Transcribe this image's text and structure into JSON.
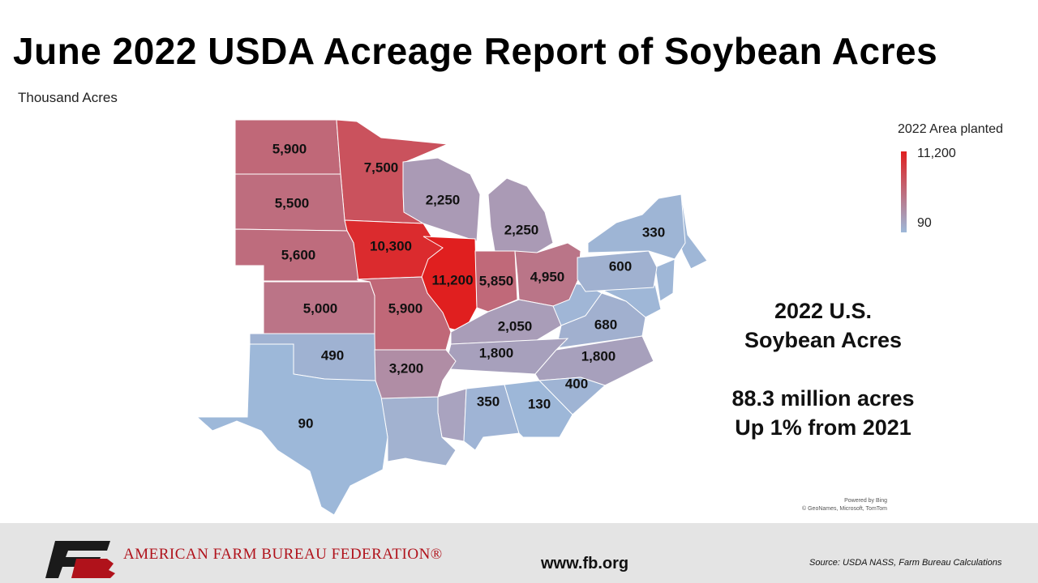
{
  "header": {
    "title": "June 2022 USDA Acreage Report of Soybean Acres",
    "subtitle": "Thousand Acres"
  },
  "legend": {
    "title": "2022 Area planted",
    "max": {
      "value": 11200,
      "label": "11,200",
      "color": "#e01f1f"
    },
    "min": {
      "value": 90,
      "label": "90",
      "color": "#9db8d9"
    }
  },
  "states": [
    {
      "label": "5,900",
      "value": 5900
    },
    {
      "label": "7,500",
      "value": 7500
    },
    {
      "label": "5,500",
      "value": 5500
    },
    {
      "label": "2,250",
      "value": 2250
    },
    {
      "label": "2,250",
      "value": 2250
    },
    {
      "label": "10,300",
      "value": 10300
    },
    {
      "label": "5,600",
      "value": 5600
    },
    {
      "label": "11,200",
      "value": 11200
    },
    {
      "label": "5,850",
      "value": 5850
    },
    {
      "label": "4,950",
      "value": 4950
    },
    {
      "label": "330",
      "value": 330
    },
    {
      "label": "600",
      "value": 600
    },
    {
      "label": "5,000",
      "value": 5000
    },
    {
      "label": "5,900",
      "value": 5900
    },
    {
      "label": "2,050",
      "value": 2050
    },
    {
      "label": "680",
      "value": 680
    },
    {
      "label": "490",
      "value": 490
    },
    {
      "label": "1,800",
      "value": 1800
    },
    {
      "label": "1,800",
      "value": 1800
    },
    {
      "label": "3,200",
      "value": 3200
    },
    {
      "label": "400",
      "value": 400
    },
    {
      "label": "350",
      "value": 350
    },
    {
      "label": "130",
      "value": 130
    },
    {
      "label": "90",
      "value": 90
    }
  ],
  "summary": {
    "heading": [
      "2022 U.S.",
      "Soybean Acres"
    ],
    "lines": [
      "88.3 million acres",
      "Up 1% from 2021"
    ]
  },
  "map_credit": [
    "Powered by Bing",
    "© GeoNames, Microsoft, TomTom"
  ],
  "footer": {
    "organization": "AMERICAN FARM BUREAU FEDERATION®",
    "website": "www.fb.org",
    "source": "Source: USDA NASS, Farm Bureau Calculations"
  }
}
